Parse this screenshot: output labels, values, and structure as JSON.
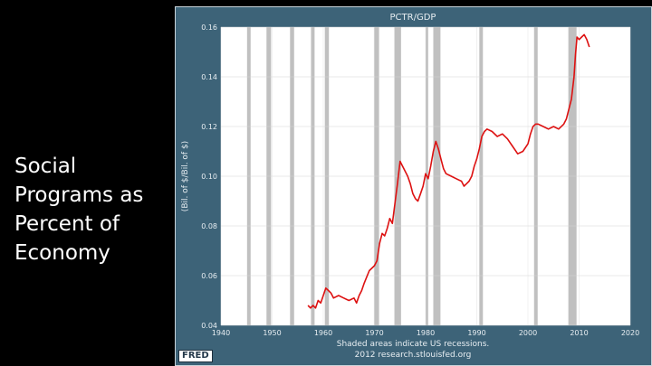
{
  "slide": {
    "title_lines": [
      "Social",
      "Programs as",
      "Percent of",
      "Economy"
    ]
  },
  "chart_frame": {
    "logo_text": "FRED",
    "footer_line1": "Shaded areas indicate US recessions.",
    "footer_line2": "2012 research.stlouisfed.org",
    "colors": {
      "frame_bg": "#3d6378",
      "plot_bg": "#ffffff",
      "line": "#dd1111",
      "recession": "#c0c0c0",
      "text": "#e8eef2"
    }
  },
  "chart_data": {
    "type": "line",
    "title": "PCTR/GDP",
    "xlabel": "",
    "ylabel": "(Bil. of $/Bil. of $)",
    "xlim": [
      1940,
      2020
    ],
    "ylim": [
      0.04,
      0.16
    ],
    "grid": true,
    "x_ticks": [
      "1940",
      "1950",
      "1960",
      "1970",
      "1980",
      "1990",
      "2000",
      "2010",
      "2020"
    ],
    "y_ticks": [
      "0.04",
      "0.06",
      "0.08",
      "0.10",
      "0.12",
      "0.14",
      "0.16"
    ],
    "recessions": [
      [
        1945.1,
        1945.8
      ],
      [
        1948.9,
        1949.8
      ],
      [
        1953.5,
        1954.3
      ],
      [
        1957.6,
        1958.3
      ],
      [
        1960.3,
        1961.1
      ],
      [
        1969.9,
        1970.9
      ],
      [
        1973.9,
        1975.2
      ],
      [
        1980.0,
        1980.5
      ],
      [
        1981.5,
        1982.9
      ],
      [
        1990.5,
        1991.2
      ],
      [
        2001.2,
        2001.9
      ],
      [
        2007.9,
        2009.5
      ]
    ],
    "series": [
      {
        "x": [
          1957.0,
          1957.5,
          1958.0,
          1958.5,
          1959.0,
          1959.5,
          1960.0,
          1960.5,
          1961.0,
          1961.5,
          1962.0,
          1963.0,
          1964.0,
          1965.0,
          1966.0,
          1966.5,
          1967.0,
          1967.5,
          1968.0,
          1969.0,
          1970.0,
          1970.5,
          1971.0,
          1971.5,
          1972.0,
          1972.5,
          1973.0,
          1973.5,
          1974.0,
          1974.5,
          1975.0,
          1975.5,
          1976.0,
          1976.5,
          1977.0,
          1977.5,
          1978.0,
          1978.5,
          1979.0,
          1979.5,
          1980.0,
          1980.5,
          1981.0,
          1981.5,
          1982.0,
          1982.5,
          1983.0,
          1983.5,
          1984.0,
          1985.0,
          1986.0,
          1987.0,
          1987.5,
          1988.0,
          1988.5,
          1989.0,
          1989.5,
          1990.0,
          1990.5,
          1991.0,
          1991.5,
          1992.0,
          1993.0,
          1994.0,
          1995.0,
          1996.0,
          1997.0,
          1998.0,
          1999.0,
          2000.0,
          2000.5,
          2001.0,
          2001.5,
          2002.0,
          2003.0,
          2004.0,
          2005.0,
          2006.0,
          2007.0,
          2007.5,
          2008.0,
          2008.5,
          2009.0,
          2009.3,
          2009.6,
          2010.0,
          2010.5,
          2011.0,
          2011.5,
          2012.0
        ],
        "values": [
          0.048,
          0.047,
          0.048,
          0.047,
          0.05,
          0.049,
          0.052,
          0.055,
          0.054,
          0.053,
          0.051,
          0.052,
          0.051,
          0.05,
          0.051,
          0.049,
          0.052,
          0.054,
          0.057,
          0.062,
          0.064,
          0.066,
          0.073,
          0.077,
          0.076,
          0.079,
          0.083,
          0.081,
          0.089,
          0.097,
          0.106,
          0.104,
          0.102,
          0.1,
          0.097,
          0.093,
          0.091,
          0.09,
          0.093,
          0.096,
          0.101,
          0.099,
          0.104,
          0.11,
          0.114,
          0.111,
          0.107,
          0.103,
          0.101,
          0.1,
          0.099,
          0.098,
          0.096,
          0.097,
          0.098,
          0.1,
          0.104,
          0.107,
          0.111,
          0.116,
          0.118,
          0.119,
          0.118,
          0.116,
          0.117,
          0.115,
          0.112,
          0.109,
          0.11,
          0.113,
          0.117,
          0.12,
          0.121,
          0.121,
          0.12,
          0.119,
          0.12,
          0.119,
          0.121,
          0.123,
          0.127,
          0.131,
          0.14,
          0.149,
          0.156,
          0.155,
          0.156,
          0.157,
          0.155,
          0.152
        ]
      }
    ]
  }
}
